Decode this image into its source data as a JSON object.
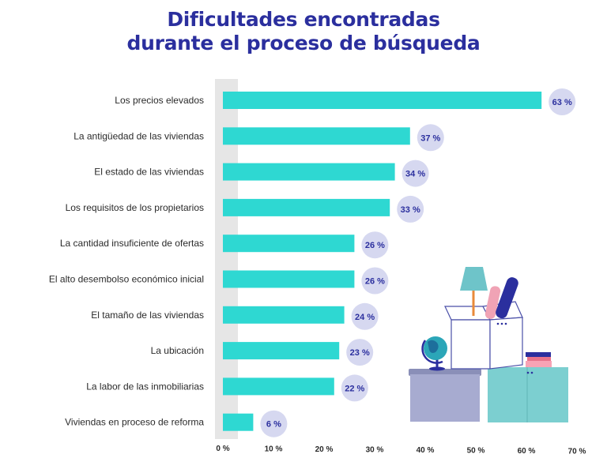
{
  "header": {
    "title_line1": "Dificultades encontradas",
    "title_line2": "durante el proceso de búsqueda"
  },
  "colors": {
    "bar": "#2ed8d2",
    "bubble": "#d6d8f0",
    "title": "#2b2f9e",
    "axis_band": "#e6e6e6"
  },
  "chart_data": {
    "type": "bar",
    "orientation": "horizontal",
    "title": "Dificultades encontradas durante el proceso de búsqueda",
    "categories": [
      "Los precios elevados",
      "La antigüedad de las viviendas",
      "El estado de las viviendas",
      "Los requisitos de los propietarios",
      "La cantidad insuficiente de ofertas",
      "El alto desembolso económico inicial",
      "El tamaño de las viviendas",
      "La ubicación",
      "La labor de las inmobiliarias",
      "Viviendas en proceso de reforma"
    ],
    "values": [
      63,
      37,
      34,
      33,
      26,
      26,
      24,
      23,
      22,
      6
    ],
    "value_labels": [
      "63 %",
      "37 %",
      "34 %",
      "33 %",
      "26 %",
      "26 %",
      "24 %",
      "23 %",
      "22 %",
      "6 %"
    ],
    "xlim": [
      0,
      70
    ],
    "x_ticks": [
      "0 %",
      "10 %",
      "20 %",
      "30 %",
      "40 %",
      "50 %",
      "60 %",
      "70 %"
    ],
    "xlabel": "",
    "ylabel": "",
    "grid": false,
    "legend": "none"
  }
}
